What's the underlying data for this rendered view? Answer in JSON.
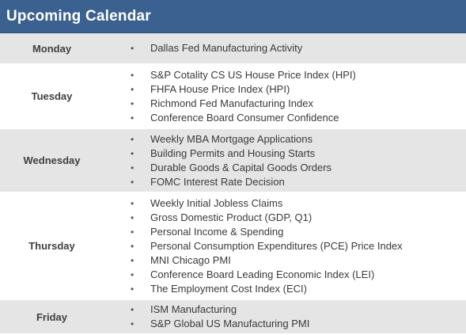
{
  "header": {
    "title": "Upcoming Calendar",
    "background_color": "#3a6190",
    "text_color": "#ffffff"
  },
  "bullet_char": "•",
  "days": [
    {
      "day": "Monday",
      "shaded": true,
      "events": [
        "Dallas Fed Manufacturing Activity"
      ]
    },
    {
      "day": "Tuesday",
      "shaded": false,
      "events": [
        "S&P Cotality CS US House Price Index (HPI)",
        "FHFA House Price Index (HPI)",
        "Richmond Fed Manufacturing Index",
        "Conference Board Consumer Confidence"
      ]
    },
    {
      "day": "Wednesday",
      "shaded": true,
      "events": [
        "Weekly MBA Mortgage Applications",
        "Building Permits and Housing Starts",
        "Durable Goods & Capital Goods Orders",
        "FOMC Interest Rate Decision"
      ]
    },
    {
      "day": "Thursday",
      "shaded": false,
      "events": [
        "Weekly Initial Jobless Claims",
        "Gross Domestic Product (GDP, Q1)",
        "Personal Income & Spending",
        "Personal Consumption Expenditures (PCE) Price Index",
        "MNI Chicago PMI",
        "Conference Board Leading Economic Index (LEI)",
        "The Employment Cost Index (ECI)"
      ]
    },
    {
      "day": "Friday",
      "shaded": true,
      "events": [
        "ISM Manufacturing",
        "S&P Global US Manufacturing PMI"
      ]
    }
  ]
}
